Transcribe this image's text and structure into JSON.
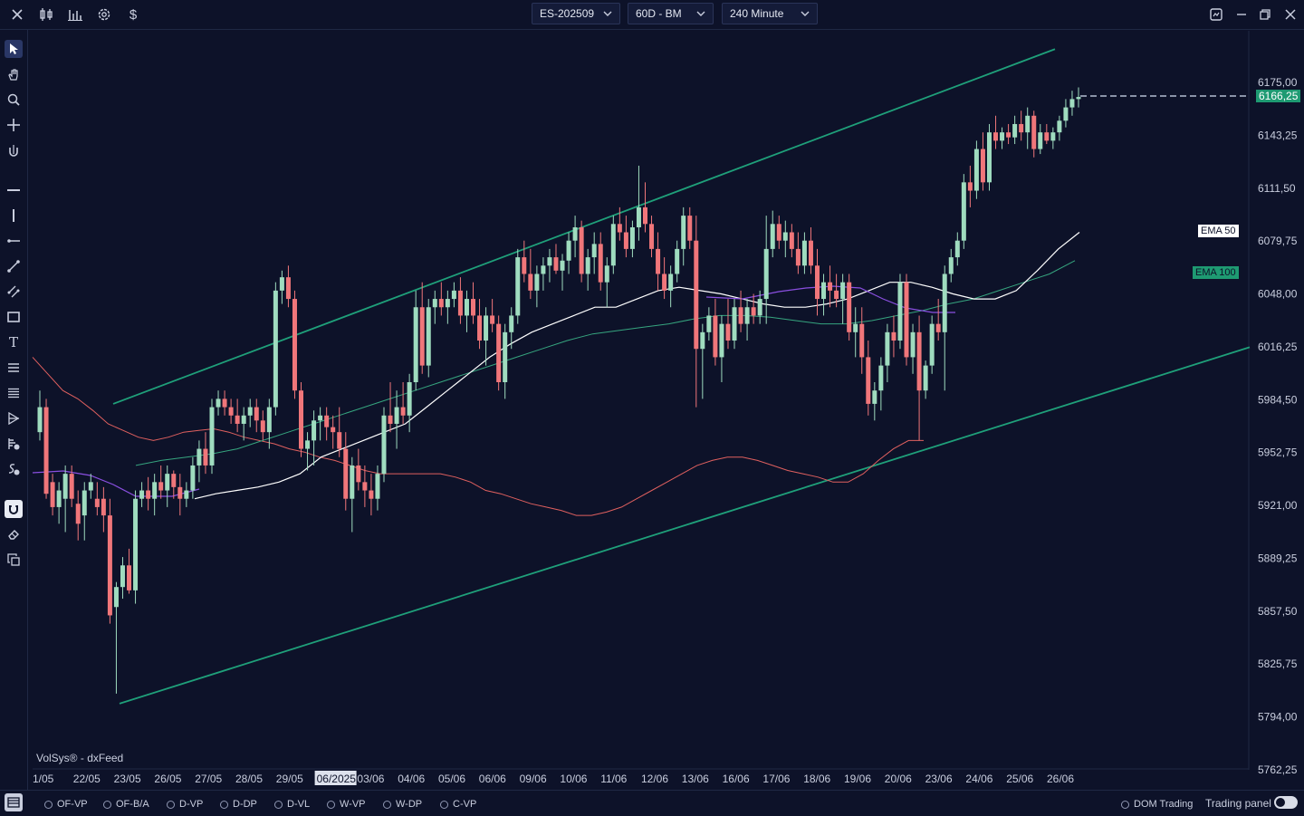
{
  "toolbar": {
    "symbol": "ES-202509",
    "template": "60D - BM",
    "timeframe": "240 Minute",
    "icons": [
      "close-icon",
      "candlestick-icon",
      "bar-chart-icon",
      "gear-icon",
      "dollar-icon"
    ]
  },
  "window_icons": [
    "screenshot-icon",
    "minimize-icon",
    "restore-icon",
    "close-icon"
  ],
  "left_tools": [
    "cursor-icon",
    "hand-icon",
    "zoom-icon",
    "crosshair-icon",
    "magnet-cursor-icon",
    "horizontal-line-icon",
    "vertical-line-icon",
    "ray-icon",
    "trend-line-icon",
    "parallel-channel-icon",
    "rectangle-icon",
    "text-icon",
    "fib-icon",
    "multi-line-icon",
    "pitchfork-icon",
    "volume-profile-icon",
    "session-profile-icon",
    "magnet-icon",
    "eraser-icon",
    "layers-icon"
  ],
  "watermark": "VolSys® - dxFeed",
  "price_axis": [
    "6175,00",
    "6143,25",
    "6111,50",
    "6079,75",
    "6048,00",
    "6016,25",
    "5984,50",
    "5952,75",
    "5921,00",
    "5889,25",
    "5857,50",
    "5825,75",
    "5794,00",
    "5762,25"
  ],
  "last_price": "6166,25",
  "ema_labels": {
    "ema50": "EMA 50",
    "ema100": "EMA 100"
  },
  "date_axis": [
    "1/05",
    "22/05",
    "23/05",
    "26/05",
    "27/05",
    "28/05",
    "29/05",
    "06/2025",
    "03/06",
    "04/06",
    "05/06",
    "06/06",
    "09/06",
    "10/06",
    "11/06",
    "12/06",
    "13/06",
    "16/06",
    "17/06",
    "18/06",
    "19/06",
    "20/06",
    "23/06",
    "24/06",
    "25/06",
    "26/06"
  ],
  "highlighted_date": "06/2025",
  "bottom_options": [
    "OF-VP",
    "OF-B/A",
    "D-VP",
    "D-DP",
    "D-VL",
    "W-VP",
    "W-DP",
    "C-VP"
  ],
  "bottom_right": {
    "dom": "DOM Trading",
    "panel": "Trading panel"
  },
  "colors": {
    "background": "#0d1229",
    "up": "#9fdcbf",
    "down": "#f0767a",
    "channel": "#1fa07a",
    "ema50": "#ffffff",
    "ema100": "#36a57f",
    "last_price_bg": "#1e9a72"
  },
  "chart_data": {
    "type": "candlestick",
    "y_axis_ticks": [
      6175.0,
      6143.25,
      6111.5,
      6079.75,
      6048.0,
      6016.25,
      5984.5,
      5952.75,
      5921.0,
      5889.25,
      5857.5,
      5825.75,
      5794.0,
      5762.25
    ],
    "ylim": [
      5762.25,
      6195.0
    ],
    "last_price": 6166.25,
    "series": [
      {
        "name": "EMA 50",
        "last": 6085.0
      },
      {
        "name": "EMA 100",
        "last": 6068.0
      }
    ],
    "candles": [
      {
        "o": 5965,
        "h": 5990,
        "l": 5960,
        "c": 5980
      },
      {
        "o": 5980,
        "h": 5985,
        "l": 5925,
        "c": 5928
      },
      {
        "o": 5935,
        "h": 5940,
        "l": 5915,
        "c": 5920
      },
      {
        "o": 5920,
        "h": 5935,
        "l": 5910,
        "c": 5930
      },
      {
        "o": 5925,
        "h": 5945,
        "l": 5905,
        "c": 5940
      },
      {
        "o": 5940,
        "h": 5945,
        "l": 5920,
        "c": 5925
      },
      {
        "o": 5922,
        "h": 5930,
        "l": 5900,
        "c": 5910
      },
      {
        "o": 5915,
        "h": 5935,
        "l": 5900,
        "c": 5930
      },
      {
        "o": 5930,
        "h": 5940,
        "l": 5925,
        "c": 5935
      },
      {
        "o": 5925,
        "h": 5935,
        "l": 5915,
        "c": 5920
      },
      {
        "o": 5925,
        "h": 5932,
        "l": 5905,
        "c": 5915
      },
      {
        "o": 5915,
        "h": 5925,
        "l": 5850,
        "c": 5855
      },
      {
        "o": 5860,
        "h": 5875,
        "l": 5808,
        "c": 5872
      },
      {
        "o": 5872,
        "h": 5890,
        "l": 5865,
        "c": 5885
      },
      {
        "o": 5885,
        "h": 5895,
        "l": 5868,
        "c": 5870
      },
      {
        "o": 5870,
        "h": 5930,
        "l": 5862,
        "c": 5925
      },
      {
        "o": 5925,
        "h": 5935,
        "l": 5920,
        "c": 5930
      },
      {
        "o": 5930,
        "h": 5938,
        "l": 5918,
        "c": 5925
      },
      {
        "o": 5925,
        "h": 5940,
        "l": 5915,
        "c": 5935
      },
      {
        "o": 5935,
        "h": 5945,
        "l": 5925,
        "c": 5930
      },
      {
        "o": 5930,
        "h": 5945,
        "l": 5920,
        "c": 5940
      },
      {
        "o": 5940,
        "h": 5942,
        "l": 5925,
        "c": 5932
      },
      {
        "o": 5932,
        "h": 5940,
        "l": 5915,
        "c": 5925
      },
      {
        "o": 5925,
        "h": 5935,
        "l": 5920,
        "c": 5930
      },
      {
        "o": 5930,
        "h": 5950,
        "l": 5925,
        "c": 5945
      },
      {
        "o": 5945,
        "h": 5960,
        "l": 5935,
        "c": 5955
      },
      {
        "o": 5955,
        "h": 5965,
        "l": 5940,
        "c": 5945
      },
      {
        "o": 5945,
        "h": 5985,
        "l": 5940,
        "c": 5980
      },
      {
        "o": 5980,
        "h": 5990,
        "l": 5975,
        "c": 5985
      },
      {
        "o": 5985,
        "h": 5990,
        "l": 5975,
        "c": 5980
      },
      {
        "o": 5980,
        "h": 5985,
        "l": 5970,
        "c": 5975
      },
      {
        "o": 5975,
        "h": 5985,
        "l": 5965,
        "c": 5970
      },
      {
        "o": 5970,
        "h": 5980,
        "l": 5960,
        "c": 5975
      },
      {
        "o": 5975,
        "h": 5985,
        "l": 5968,
        "c": 5980
      },
      {
        "o": 5980,
        "h": 5985,
        "l": 5965,
        "c": 5972
      },
      {
        "o": 5972,
        "h": 5978,
        "l": 5960,
        "c": 5965
      },
      {
        "o": 5965,
        "h": 5985,
        "l": 5955,
        "c": 5980
      },
      {
        "o": 5980,
        "h": 6055,
        "l": 5975,
        "c": 6050
      },
      {
        "o": 6050,
        "h": 6062,
        "l": 6042,
        "c": 6058
      },
      {
        "o": 6058,
        "h": 6065,
        "l": 6040,
        "c": 6045
      },
      {
        "o": 6045,
        "h": 6050,
        "l": 5985,
        "c": 5990
      },
      {
        "o": 5990,
        "h": 5995,
        "l": 5950,
        "c": 5955
      },
      {
        "o": 5955,
        "h": 5965,
        "l": 5942,
        "c": 5960
      },
      {
        "o": 5960,
        "h": 5978,
        "l": 5945,
        "c": 5972
      },
      {
        "o": 5972,
        "h": 5980,
        "l": 5960,
        "c": 5975
      },
      {
        "o": 5975,
        "h": 5980,
        "l": 5960,
        "c": 5968
      },
      {
        "o": 5968,
        "h": 5975,
        "l": 5955,
        "c": 5965
      },
      {
        "o": 5965,
        "h": 5980,
        "l": 5950,
        "c": 5955
      },
      {
        "o": 5955,
        "h": 5965,
        "l": 5918,
        "c": 5925
      },
      {
        "o": 5925,
        "h": 5950,
        "l": 5905,
        "c": 5945
      },
      {
        "o": 5945,
        "h": 5955,
        "l": 5930,
        "c": 5935
      },
      {
        "o": 5935,
        "h": 5945,
        "l": 5920,
        "c": 5930
      },
      {
        "o": 5930,
        "h": 5940,
        "l": 5915,
        "c": 5925
      },
      {
        "o": 5925,
        "h": 5945,
        "l": 5918,
        "c": 5940
      },
      {
        "o": 5940,
        "h": 5980,
        "l": 5935,
        "c": 5975
      },
      {
        "o": 5975,
        "h": 5995,
        "l": 5965,
        "c": 5970
      },
      {
        "o": 5970,
        "h": 5990,
        "l": 5955,
        "c": 5980
      },
      {
        "o": 5980,
        "h": 5995,
        "l": 5970,
        "c": 5975
      },
      {
        "o": 5975,
        "h": 6000,
        "l": 5965,
        "c": 5995
      },
      {
        "o": 5995,
        "h": 6050,
        "l": 5990,
        "c": 6040
      },
      {
        "o": 6040,
        "h": 6055,
        "l": 6000,
        "c": 6005
      },
      {
        "o": 6005,
        "h": 6045,
        "l": 5998,
        "c": 6040
      },
      {
        "o": 6040,
        "h": 6050,
        "l": 6030,
        "c": 6045
      },
      {
        "o": 6045,
        "h": 6055,
        "l": 6035,
        "c": 6040
      },
      {
        "o": 6040,
        "h": 6050,
        "l": 6030,
        "c": 6045
      },
      {
        "o": 6045,
        "h": 6055,
        "l": 6040,
        "c": 6050
      },
      {
        "o": 6050,
        "h": 6058,
        "l": 6030,
        "c": 6035
      },
      {
        "o": 6035,
        "h": 6050,
        "l": 6025,
        "c": 6045
      },
      {
        "o": 6045,
        "h": 6055,
        "l": 6030,
        "c": 6035
      },
      {
        "o": 6035,
        "h": 6045,
        "l": 6015,
        "c": 6020
      },
      {
        "o": 6020,
        "h": 6040,
        "l": 6005,
        "c": 6035
      },
      {
        "o": 6035,
        "h": 6045,
        "l": 6025,
        "c": 6030
      },
      {
        "o": 6030,
        "h": 6035,
        "l": 5990,
        "c": 5995
      },
      {
        "o": 5995,
        "h": 6030,
        "l": 5985,
        "c": 6025
      },
      {
        "o": 6025,
        "h": 6040,
        "l": 6015,
        "c": 6035
      },
      {
        "o": 6035,
        "h": 6075,
        "l": 6030,
        "c": 6070
      },
      {
        "o": 6070,
        "h": 6080,
        "l": 6055,
        "c": 6060
      },
      {
        "o": 6060,
        "h": 6075,
        "l": 6045,
        "c": 6050
      },
      {
        "o": 6050,
        "h": 6065,
        "l": 6040,
        "c": 6060
      },
      {
        "o": 6060,
        "h": 6070,
        "l": 6050,
        "c": 6065
      },
      {
        "o": 6065,
        "h": 6075,
        "l": 6055,
        "c": 6070
      },
      {
        "o": 6070,
        "h": 6078,
        "l": 6060,
        "c": 6062
      },
      {
        "o": 6062,
        "h": 6072,
        "l": 6050,
        "c": 6068
      },
      {
        "o": 6068,
        "h": 6085,
        "l": 6060,
        "c": 6080
      },
      {
        "o": 6080,
        "h": 6095,
        "l": 6070,
        "c": 6088
      },
      {
        "o": 6088,
        "h": 6092,
        "l": 6055,
        "c": 6060
      },
      {
        "o": 6060,
        "h": 6075,
        "l": 6050,
        "c": 6070
      },
      {
        "o": 6070,
        "h": 6085,
        "l": 6060,
        "c": 6078
      },
      {
        "o": 6078,
        "h": 6085,
        "l": 6050,
        "c": 6055
      },
      {
        "o": 6055,
        "h": 6070,
        "l": 6040,
        "c": 6065
      },
      {
        "o": 6065,
        "h": 6095,
        "l": 6060,
        "c": 6090
      },
      {
        "o": 6090,
        "h": 6100,
        "l": 6080,
        "c": 6085
      },
      {
        "o": 6085,
        "h": 6095,
        "l": 6070,
        "c": 6075
      },
      {
        "o": 6075,
        "h": 6092,
        "l": 6070,
        "c": 6088
      },
      {
        "o": 6088,
        "h": 6125,
        "l": 6080,
        "c": 6100
      },
      {
        "o": 6100,
        "h": 6115,
        "l": 6085,
        "c": 6090
      },
      {
        "o": 6090,
        "h": 6095,
        "l": 6070,
        "c": 6075
      },
      {
        "o": 6075,
        "h": 6085,
        "l": 6050,
        "c": 6060
      },
      {
        "o": 6060,
        "h": 6070,
        "l": 6045,
        "c": 6050
      },
      {
        "o": 6050,
        "h": 6065,
        "l": 6040,
        "c": 6060
      },
      {
        "o": 6060,
        "h": 6080,
        "l": 6055,
        "c": 6075
      },
      {
        "o": 6075,
        "h": 6100,
        "l": 6065,
        "c": 6095
      },
      {
        "o": 6095,
        "h": 6100,
        "l": 6075,
        "c": 6080
      },
      {
        "o": 6080,
        "h": 6095,
        "l": 5980,
        "c": 6015
      },
      {
        "o": 6015,
        "h": 6030,
        "l": 5985,
        "c": 6025
      },
      {
        "o": 6025,
        "h": 6040,
        "l": 6020,
        "c": 6035
      },
      {
        "o": 6035,
        "h": 6045,
        "l": 6005,
        "c": 6010
      },
      {
        "o": 6010,
        "h": 6035,
        "l": 5995,
        "c": 6030
      },
      {
        "o": 6030,
        "h": 6045,
        "l": 6015,
        "c": 6020
      },
      {
        "o": 6020,
        "h": 6045,
        "l": 6015,
        "c": 6040
      },
      {
        "o": 6040,
        "h": 6050,
        "l": 6025,
        "c": 6030
      },
      {
        "o": 6030,
        "h": 6045,
        "l": 6020,
        "c": 6040
      },
      {
        "o": 6040,
        "h": 6048,
        "l": 6030,
        "c": 6035
      },
      {
        "o": 6035,
        "h": 6050,
        "l": 6030,
        "c": 6045
      },
      {
        "o": 6045,
        "h": 6095,
        "l": 6030,
        "c": 6075
      },
      {
        "o": 6075,
        "h": 6098,
        "l": 6070,
        "c": 6090
      },
      {
        "o": 6090,
        "h": 6095,
        "l": 6075,
        "c": 6080
      },
      {
        "o": 6080,
        "h": 6092,
        "l": 6070,
        "c": 6085
      },
      {
        "o": 6085,
        "h": 6090,
        "l": 6070,
        "c": 6075
      },
      {
        "o": 6075,
        "h": 6085,
        "l": 6060,
        "c": 6065
      },
      {
        "o": 6065,
        "h": 6085,
        "l": 6060,
        "c": 6080
      },
      {
        "o": 6080,
        "h": 6088,
        "l": 6060,
        "c": 6065
      },
      {
        "o": 6065,
        "h": 6075,
        "l": 6035,
        "c": 6045
      },
      {
        "o": 6045,
        "h": 6060,
        "l": 6035,
        "c": 6055
      },
      {
        "o": 6055,
        "h": 6065,
        "l": 6040,
        "c": 6050
      },
      {
        "o": 6050,
        "h": 6060,
        "l": 6040,
        "c": 6045
      },
      {
        "o": 6045,
        "h": 6060,
        "l": 6030,
        "c": 6055
      },
      {
        "o": 6055,
        "h": 6060,
        "l": 6020,
        "c": 6025
      },
      {
        "o": 6025,
        "h": 6040,
        "l": 6010,
        "c": 6030
      },
      {
        "o": 6030,
        "h": 6040,
        "l": 6000,
        "c": 6010
      },
      {
        "o": 6010,
        "h": 6020,
        "l": 5975,
        "c": 5982
      },
      {
        "o": 5982,
        "h": 5995,
        "l": 5972,
        "c": 5990
      },
      {
        "o": 5990,
        "h": 6010,
        "l": 5978,
        "c": 6005
      },
      {
        "o": 6005,
        "h": 6030,
        "l": 5995,
        "c": 6025
      },
      {
        "o": 6025,
        "h": 6035,
        "l": 6010,
        "c": 6020
      },
      {
        "o": 6020,
        "h": 6060,
        "l": 6015,
        "c": 6055
      },
      {
        "o": 6055,
        "h": 6060,
        "l": 6005,
        "c": 6010
      },
      {
        "o": 6010,
        "h": 6030,
        "l": 6000,
        "c": 6025
      },
      {
        "o": 6025,
        "h": 6035,
        "l": 5960,
        "c": 5990
      },
      {
        "o": 5990,
        "h": 6008,
        "l": 5985,
        "c": 6005
      },
      {
        "o": 6005,
        "h": 6035,
        "l": 6000,
        "c": 6030
      },
      {
        "o": 6030,
        "h": 6045,
        "l": 6020,
        "c": 6025
      },
      {
        "o": 6025,
        "h": 6065,
        "l": 5990,
        "c": 6060
      },
      {
        "o": 6060,
        "h": 6075,
        "l": 6055,
        "c": 6070
      },
      {
        "o": 6070,
        "h": 6085,
        "l": 6065,
        "c": 6080
      },
      {
        "o": 6080,
        "h": 6120,
        "l": 6075,
        "c": 6115
      },
      {
        "o": 6115,
        "h": 6125,
        "l": 6100,
        "c": 6110
      },
      {
        "o": 6110,
        "h": 6140,
        "l": 6105,
        "c": 6135
      },
      {
        "o": 6135,
        "h": 6145,
        "l": 6110,
        "c": 6115
      },
      {
        "o": 6115,
        "h": 6150,
        "l": 6110,
        "c": 6145
      },
      {
        "o": 6145,
        "h": 6155,
        "l": 6135,
        "c": 6140
      },
      {
        "o": 6140,
        "h": 6148,
        "l": 6135,
        "c": 6145
      },
      {
        "o": 6145,
        "h": 6150,
        "l": 6138,
        "c": 6142
      },
      {
        "o": 6142,
        "h": 6155,
        "l": 6138,
        "c": 6150
      },
      {
        "o": 6150,
        "h": 6158,
        "l": 6140,
        "c": 6145
      },
      {
        "o": 6145,
        "h": 6160,
        "l": 6135,
        "c": 6155
      },
      {
        "o": 6155,
        "h": 6158,
        "l": 6130,
        "c": 6135
      },
      {
        "o": 6135,
        "h": 6150,
        "l": 6132,
        "c": 6145
      },
      {
        "o": 6145,
        "h": 6150,
        "l": 6138,
        "c": 6140
      },
      {
        "o": 6140,
        "h": 6148,
        "l": 6135,
        "c": 6145
      },
      {
        "o": 6145,
        "h": 6155,
        "l": 6140,
        "c": 6152
      },
      {
        "o": 6152,
        "h": 6165,
        "l": 6148,
        "c": 6160
      },
      {
        "o": 6160,
        "h": 6170,
        "l": 6155,
        "c": 6165
      },
      {
        "o": 6165,
        "h": 6172,
        "l": 6160,
        "c": 6166.25
      }
    ],
    "channel": {
      "upper": [
        [
          125,
          5982
        ],
        [
          1165,
          6195
        ]
      ],
      "lower": [
        [
          132,
          5802
        ],
        [
          1380,
          6016
        ]
      ]
    },
    "moving_averages": {
      "red": [
        6010,
        6000,
        5990,
        5985,
        5978,
        5970,
        5966,
        5962,
        5960,
        5962,
        5965,
        5966,
        5967,
        5965,
        5962,
        5960,
        5958,
        5955,
        5953,
        5950,
        5948,
        5945,
        5942,
        5940,
        5940,
        5940,
        5940,
        5940,
        5938,
        5935,
        5930,
        5928,
        5925,
        5922,
        5920,
        5918,
        5915,
        5915,
        5917,
        5920,
        5925,
        5930,
        5935,
        5940,
        5945,
        5948,
        5950,
        5950,
        5948,
        5945,
        5942,
        5940,
        5938,
        5935,
        5935,
        5940,
        5948,
        5955,
        5960,
        5960
      ],
      "ema50": [
        5925,
        5928,
        5930,
        5932,
        5935,
        5940,
        5950,
        5955,
        5960,
        5965,
        5970,
        5980,
        5990,
        6000,
        6010,
        6018,
        6025,
        6030,
        6035,
        6040,
        6040,
        6045,
        6050,
        6052,
        6050,
        6048,
        6045,
        6042,
        6040,
        6040,
        6042,
        6045,
        6050,
        6055,
        6055,
        6052,
        6048,
        6045,
        6045,
        6050,
        6062,
        6075,
        6085
      ],
      "ema100": [
        5945,
        5948,
        5950,
        5952,
        5955,
        5960,
        5965,
        5970,
        5975,
        5980,
        5985,
        5990,
        5995,
        6000,
        6005,
        6010,
        6015,
        6020,
        6024,
        6026,
        6028,
        6030,
        6033,
        6035,
        6035,
        6034,
        6032,
        6030,
        6030,
        6032,
        6035,
        6038,
        6042,
        6045,
        6050,
        6055,
        6060,
        6068
      ]
    }
  }
}
